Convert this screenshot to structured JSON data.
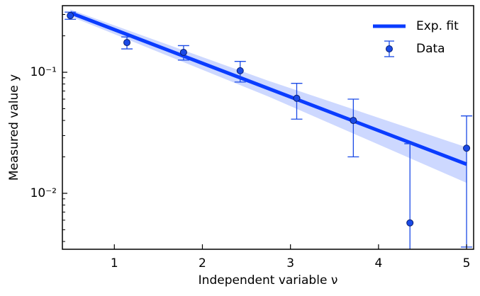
{
  "chart_data": {
    "type": "errorbar",
    "xlabel": "Independent variable ν",
    "ylabel": "Measured value y",
    "xlim": [
      0.41,
      5.08
    ],
    "ylim": [
      0.00345,
      0.355
    ],
    "log_y": true,
    "xticks": [
      1,
      2,
      3,
      4,
      5
    ],
    "yticks": [
      {
        "value": 0.1,
        "label": "10⁻¹"
      },
      {
        "value": 0.01,
        "label": "10⁻²"
      }
    ],
    "yminorticks": [
      0.004,
      0.005,
      0.006,
      0.007,
      0.008,
      0.009,
      0.02,
      0.03,
      0.04,
      0.05,
      0.06,
      0.07,
      0.08,
      0.09,
      0.2,
      0.3
    ],
    "legend": "upper right",
    "series": [
      {
        "name": "Exp. fit",
        "color": "#0a3cff",
        "band_color": "#cdd8ff",
        "x": [
          0.5,
          2.75,
          5.0
        ],
        "values": [
          0.31,
          0.0734,
          0.0174
        ],
        "band_lower": [
          0.29,
          0.063,
          0.0122
        ],
        "band_upper": [
          0.33,
          0.085,
          0.024
        ]
      },
      {
        "name": "Data",
        "color": "#1a4ae6",
        "x": [
          0.5,
          1.143,
          1.786,
          2.429,
          3.071,
          3.714,
          4.357,
          5.0
        ],
        "values": [
          0.294,
          0.176,
          0.146,
          0.103,
          0.061,
          0.04,
          0.0057,
          0.0236
        ],
        "errors": [
          0.02,
          0.02,
          0.02,
          0.02,
          0.02,
          0.02,
          0.02,
          0.02
        ]
      }
    ]
  }
}
